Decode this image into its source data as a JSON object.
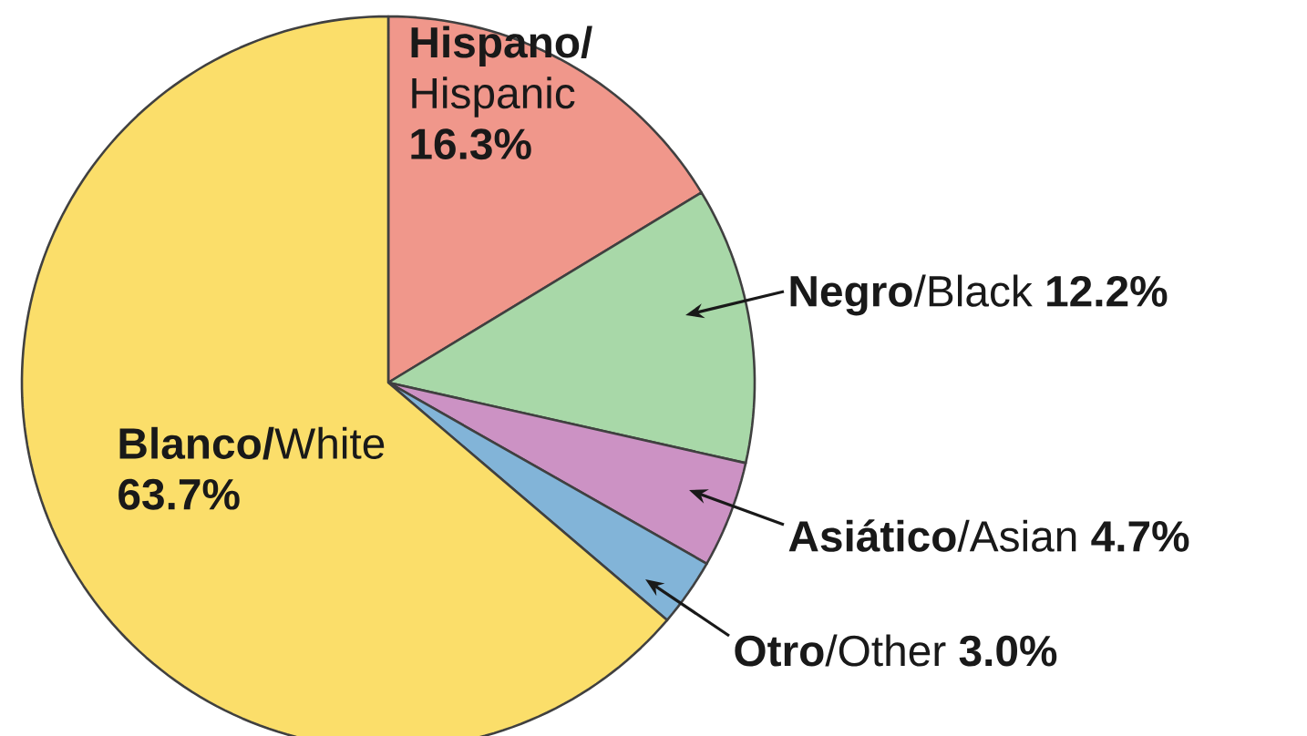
{
  "chart_data": {
    "type": "pie",
    "categories": [
      "**Hispano/** Hispanic",
      "**Negro**/Black",
      "**Asiático**/Asian",
      "**Otro**/Other",
      "**Blanco/**White"
    ],
    "values": [
      16.3,
      12.2,
      4.7,
      3.0,
      63.7
    ],
    "value_labels": [
      "**16.3%**",
      "**12.2%**",
      "**4.7%**",
      "**3.0%**",
      "**63.7%**"
    ],
    "colors": [
      "#f0978b",
      "#a8d8a8",
      "#cc92c4",
      "#82b4d8",
      "#fbde6a"
    ]
  }
}
